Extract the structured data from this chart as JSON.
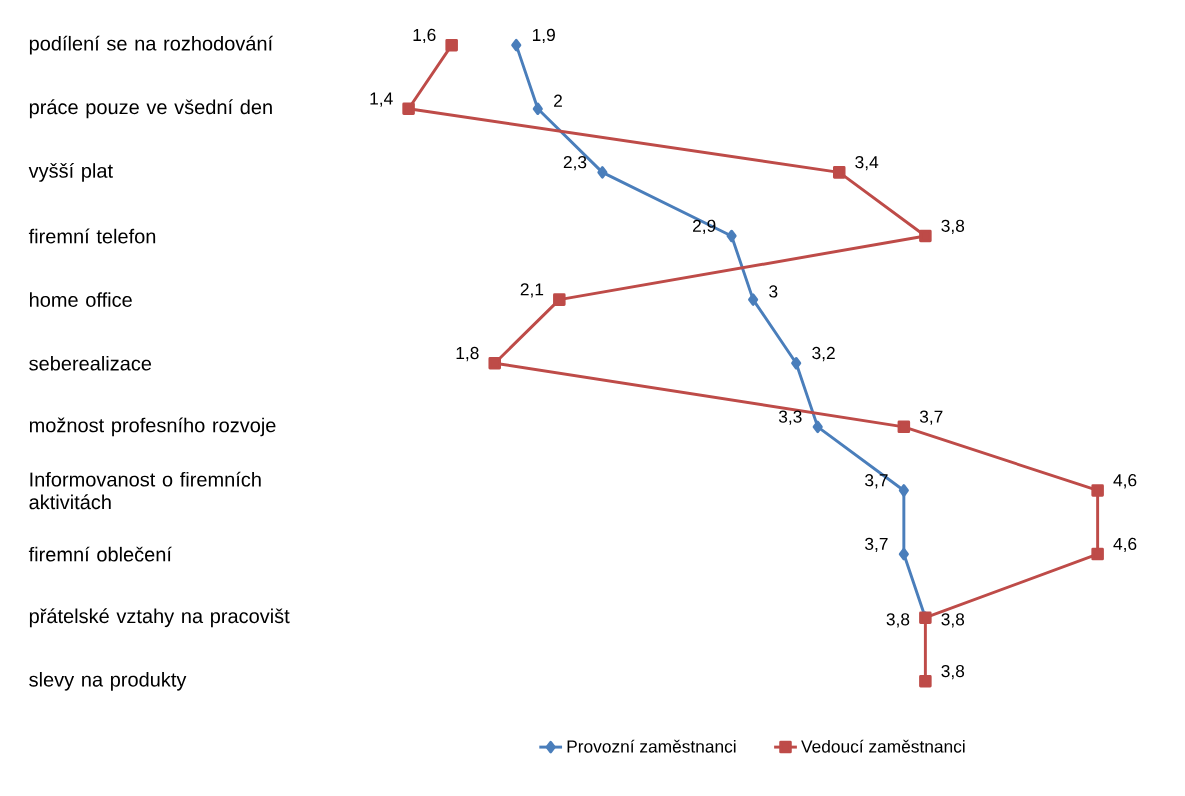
{
  "chart_data": {
    "type": "line",
    "orientation": "horizontal",
    "categories": [
      "podílení se na rozhodování",
      "práce pouze ve všední den",
      "vyšší plat",
      "firemní telefon",
      "home office",
      "seberealizace",
      "možnost profesního rozvoje",
      "Informovanost o firemních aktivitách",
      "firemní oblečení",
      "přátelské vztahy na pracovišt",
      "slevy na produkty"
    ],
    "tick_labels": "y",
    "legend": "bottom",
    "grid": false,
    "line_style": "solid",
    "series": [
      {
        "name": "Provozní zaměstnanci",
        "color": "#4a7ebb",
        "marker": "diamond",
        "values": [
          1.9,
          2,
          2.3,
          2.9,
          3,
          3.2,
          3.3,
          3.7,
          3.7,
          3.8,
          null
        ],
        "value_labels": [
          "1,9",
          "2",
          "2,3",
          "2,9",
          "3",
          "3,2",
          "3,3",
          "3,7",
          "3,7",
          "3,8",
          null
        ]
      },
      {
        "name": "Vedoucí zaměstnanci",
        "color": "#be4b48",
        "marker": "square",
        "values": [
          1.6,
          1.4,
          3.4,
          3.8,
          2.1,
          1.8,
          3.7,
          4.6,
          4.6,
          3.8,
          3.8
        ],
        "value_labels": [
          "1,6",
          "1,4",
          "3,4",
          "3,8",
          "2,1",
          "1,8",
          "3,7",
          "4,6",
          "4,6",
          "3,8",
          "3,8"
        ]
      }
    ]
  }
}
